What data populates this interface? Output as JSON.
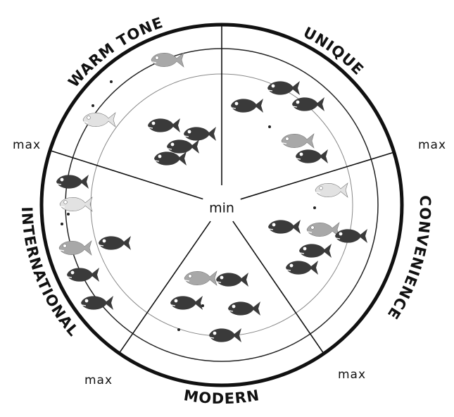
{
  "segments": [
    {
      "label": "WARM TONE"
    },
    {
      "label": "UNIQUE"
    },
    {
      "label": "CONVENIENCE"
    },
    {
      "label": "MODERN"
    },
    {
      "label": "INTERNATIONAL"
    }
  ],
  "max_labels": [
    "max",
    "max",
    "max",
    "max"
  ],
  "center_label": "min"
}
